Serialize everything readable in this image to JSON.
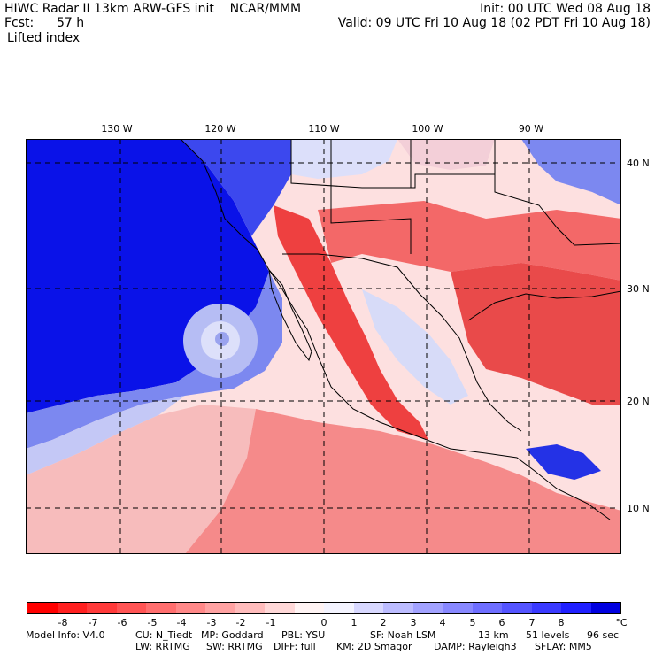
{
  "header": {
    "line1_left": "HIWC Radar II 13km ARW-GFS init    NCAR/MMM",
    "line1_right": "Init: 00 UTC Wed 08 Aug 18",
    "fcst_label": "Fcst:",
    "fcst_value": "57 h",
    "valid": "Valid: 09 UTC Fri 10 Aug 18 (02 PDT Fri 10 Aug 18)",
    "field": "Lifted index"
  },
  "map": {
    "lon_labels": [
      "130 W",
      "120 W",
      "110 W",
      "100 W",
      "90 W"
    ],
    "lat_labels": [
      "40 N",
      "30 N",
      "20 N",
      "10 N"
    ]
  },
  "colorbar": {
    "colors": [
      "#ff0000",
      "#ff2020",
      "#ff3a3a",
      "#ff5454",
      "#ff6e6e",
      "#ff8888",
      "#ffa2a2",
      "#ffbcbc",
      "#ffd8d8",
      "#fff4f4",
      "#f4f4ff",
      "#d8d8ff",
      "#bcbcff",
      "#a2a2ff",
      "#8888ff",
      "#6e6eff",
      "#5454ff",
      "#3a3aff",
      "#2020ff",
      "#0000e0"
    ],
    "tick_labels": [
      "-8",
      "-7",
      "-6",
      "-5",
      "-4",
      "-3",
      "-2",
      "-1",
      "0",
      "1",
      "2",
      "3",
      "4",
      "5",
      "6",
      "7",
      "8"
    ],
    "unit": "°C"
  },
  "footer": {
    "line1": [
      "Model Info: V4.0",
      "CU: N_Tiedt",
      "MP: Goddard",
      "PBL: YSU",
      "SF: Noah LSM",
      "13 km",
      "51 levels",
      "96 sec"
    ],
    "line2": [
      "LW: RRTMG",
      "SW: RRTMG",
      "DIFF: full",
      "KM: 2D Smagor",
      "DAMP: Rayleigh3",
      "SFLAY: MM5"
    ]
  }
}
